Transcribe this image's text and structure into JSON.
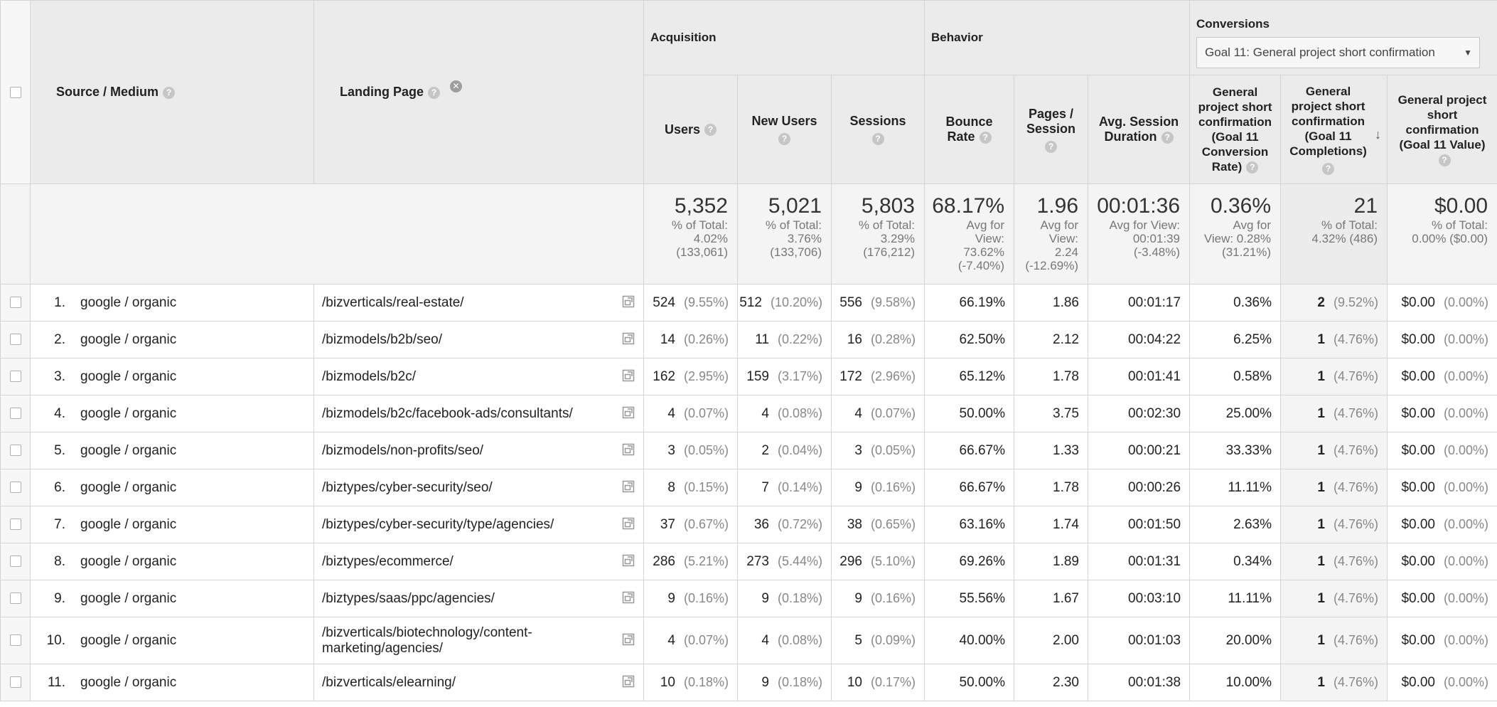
{
  "headers": {
    "source_medium": "Source / Medium",
    "landing_page": "Landing Page",
    "acquisition": "Acquisition",
    "behavior": "Behavior",
    "conversions": "Conversions",
    "goal_select": "Goal 11: General project short confirmation",
    "users": "Users",
    "new_users": "New Users",
    "sessions": "Sessions",
    "bounce_rate": "Bounce Rate",
    "pages_session": "Pages / Session",
    "avg_session_duration": "Avg. Session Duration",
    "goal_conv_rate": "General project short confirmation (Goal 11 Conversion Rate)",
    "goal_completions": "General project short confirmation (Goal 11 Completions)",
    "goal_value": "General project short confirmation (Goal 11 Value)"
  },
  "totals": {
    "users": {
      "value": "5,352",
      "sub1": "% of Total:",
      "sub2": "4.02%",
      "sub3": "(133,061)"
    },
    "new_users": {
      "value": "5,021",
      "sub1": "% of Total:",
      "sub2": "3.76%",
      "sub3": "(133,706)"
    },
    "sessions": {
      "value": "5,803",
      "sub1": "% of Total:",
      "sub2": "3.29%",
      "sub3": "(176,212)"
    },
    "bounce_rate": {
      "value": "68.17%",
      "sub1": "Avg for",
      "sub2": "View:",
      "sub3": "73.62%",
      "sub4": "(-7.40%)"
    },
    "pages_session": {
      "value": "1.96",
      "sub1": "Avg for",
      "sub2": "View:",
      "sub3": "2.24",
      "sub4": "(-12.69%)"
    },
    "avg_session_duration": {
      "value": "00:01:36",
      "sub1": "Avg for View:",
      "sub2": "00:01:39",
      "sub3": "(-3.48%)"
    },
    "goal_conv_rate": {
      "value": "0.36%",
      "sub1": "Avg for",
      "sub2": "View: 0.28%",
      "sub3": "(31.21%)"
    },
    "goal_completions": {
      "value": "21",
      "sub1": "% of Total:",
      "sub2": "4.32% (486)"
    },
    "goal_value": {
      "value": "$0.00",
      "sub1": "% of Total:",
      "sub2": "0.00% ($0.00)"
    }
  },
  "rows": [
    {
      "index": "1.",
      "source": "google / organic",
      "landing_page": "/bizverticals/real-estate/",
      "users": "524",
      "users_pct": "(9.55%)",
      "new_users": "512",
      "new_users_pct": "(10.20%)",
      "sessions": "556",
      "sessions_pct": "(9.58%)",
      "bounce_rate": "66.19%",
      "pages_session": "1.86",
      "avg_duration": "00:01:17",
      "conv_rate": "0.36%",
      "completions": "2",
      "completions_pct": "(9.52%)",
      "value": "$0.00",
      "value_pct": "(0.00%)"
    },
    {
      "index": "2.",
      "source": "google / organic",
      "landing_page": "/bizmodels/b2b/seo/",
      "users": "14",
      "users_pct": "(0.26%)",
      "new_users": "11",
      "new_users_pct": "(0.22%)",
      "sessions": "16",
      "sessions_pct": "(0.28%)",
      "bounce_rate": "62.50%",
      "pages_session": "2.12",
      "avg_duration": "00:04:22",
      "conv_rate": "6.25%",
      "completions": "1",
      "completions_pct": "(4.76%)",
      "value": "$0.00",
      "value_pct": "(0.00%)"
    },
    {
      "index": "3.",
      "source": "google / organic",
      "landing_page": "/bizmodels/b2c/",
      "users": "162",
      "users_pct": "(2.95%)",
      "new_users": "159",
      "new_users_pct": "(3.17%)",
      "sessions": "172",
      "sessions_pct": "(2.96%)",
      "bounce_rate": "65.12%",
      "pages_session": "1.78",
      "avg_duration": "00:01:41",
      "conv_rate": "0.58%",
      "completions": "1",
      "completions_pct": "(4.76%)",
      "value": "$0.00",
      "value_pct": "(0.00%)"
    },
    {
      "index": "4.",
      "source": "google / organic",
      "landing_page": "/bizmodels/b2c/facebook-ads/consultants/",
      "users": "4",
      "users_pct": "(0.07%)",
      "new_users": "4",
      "new_users_pct": "(0.08%)",
      "sessions": "4",
      "sessions_pct": "(0.07%)",
      "bounce_rate": "50.00%",
      "pages_session": "3.75",
      "avg_duration": "00:02:30",
      "conv_rate": "25.00%",
      "completions": "1",
      "completions_pct": "(4.76%)",
      "value": "$0.00",
      "value_pct": "(0.00%)"
    },
    {
      "index": "5.",
      "source": "google / organic",
      "landing_page": "/bizmodels/non-profits/seo/",
      "users": "3",
      "users_pct": "(0.05%)",
      "new_users": "2",
      "new_users_pct": "(0.04%)",
      "sessions": "3",
      "sessions_pct": "(0.05%)",
      "bounce_rate": "66.67%",
      "pages_session": "1.33",
      "avg_duration": "00:00:21",
      "conv_rate": "33.33%",
      "completions": "1",
      "completions_pct": "(4.76%)",
      "value": "$0.00",
      "value_pct": "(0.00%)"
    },
    {
      "index": "6.",
      "source": "google / organic",
      "landing_page": "/biztypes/cyber-security/seo/",
      "users": "8",
      "users_pct": "(0.15%)",
      "new_users": "7",
      "new_users_pct": "(0.14%)",
      "sessions": "9",
      "sessions_pct": "(0.16%)",
      "bounce_rate": "66.67%",
      "pages_session": "1.78",
      "avg_duration": "00:00:26",
      "conv_rate": "11.11%",
      "completions": "1",
      "completions_pct": "(4.76%)",
      "value": "$0.00",
      "value_pct": "(0.00%)"
    },
    {
      "index": "7.",
      "source": "google / organic",
      "landing_page": "/biztypes/cyber-security/type/agencies/",
      "users": "37",
      "users_pct": "(0.67%)",
      "new_users": "36",
      "new_users_pct": "(0.72%)",
      "sessions": "38",
      "sessions_pct": "(0.65%)",
      "bounce_rate": "63.16%",
      "pages_session": "1.74",
      "avg_duration": "00:01:50",
      "conv_rate": "2.63%",
      "completions": "1",
      "completions_pct": "(4.76%)",
      "value": "$0.00",
      "value_pct": "(0.00%)"
    },
    {
      "index": "8.",
      "source": "google / organic",
      "landing_page": "/biztypes/ecommerce/",
      "users": "286",
      "users_pct": "(5.21%)",
      "new_users": "273",
      "new_users_pct": "(5.44%)",
      "sessions": "296",
      "sessions_pct": "(5.10%)",
      "bounce_rate": "69.26%",
      "pages_session": "1.89",
      "avg_duration": "00:01:31",
      "conv_rate": "0.34%",
      "completions": "1",
      "completions_pct": "(4.76%)",
      "value": "$0.00",
      "value_pct": "(0.00%)"
    },
    {
      "index": "9.",
      "source": "google / organic",
      "landing_page": "/biztypes/saas/ppc/agencies/",
      "users": "9",
      "users_pct": "(0.16%)",
      "new_users": "9",
      "new_users_pct": "(0.18%)",
      "sessions": "9",
      "sessions_pct": "(0.16%)",
      "bounce_rate": "55.56%",
      "pages_session": "1.67",
      "avg_duration": "00:03:10",
      "conv_rate": "11.11%",
      "completions": "1",
      "completions_pct": "(4.76%)",
      "value": "$0.00",
      "value_pct": "(0.00%)"
    },
    {
      "index": "10.",
      "source": "google / organic",
      "landing_page": "/bizverticals/biotechnology/content-marketing/agencies/",
      "users": "4",
      "users_pct": "(0.07%)",
      "new_users": "4",
      "new_users_pct": "(0.08%)",
      "sessions": "5",
      "sessions_pct": "(0.09%)",
      "bounce_rate": "40.00%",
      "pages_session": "2.00",
      "avg_duration": "00:01:03",
      "conv_rate": "20.00%",
      "completions": "1",
      "completions_pct": "(4.76%)",
      "value": "$0.00",
      "value_pct": "(0.00%)"
    },
    {
      "index": "11.",
      "source": "google / organic",
      "landing_page": "/bizverticals/elearning/",
      "users": "10",
      "users_pct": "(0.18%)",
      "new_users": "9",
      "new_users_pct": "(0.18%)",
      "sessions": "10",
      "sessions_pct": "(0.17%)",
      "bounce_rate": "50.00%",
      "pages_session": "2.30",
      "avg_duration": "00:01:38",
      "conv_rate": "10.00%",
      "completions": "1",
      "completions_pct": "(4.76%)",
      "value": "$0.00",
      "value_pct": "(0.00%)"
    }
  ]
}
